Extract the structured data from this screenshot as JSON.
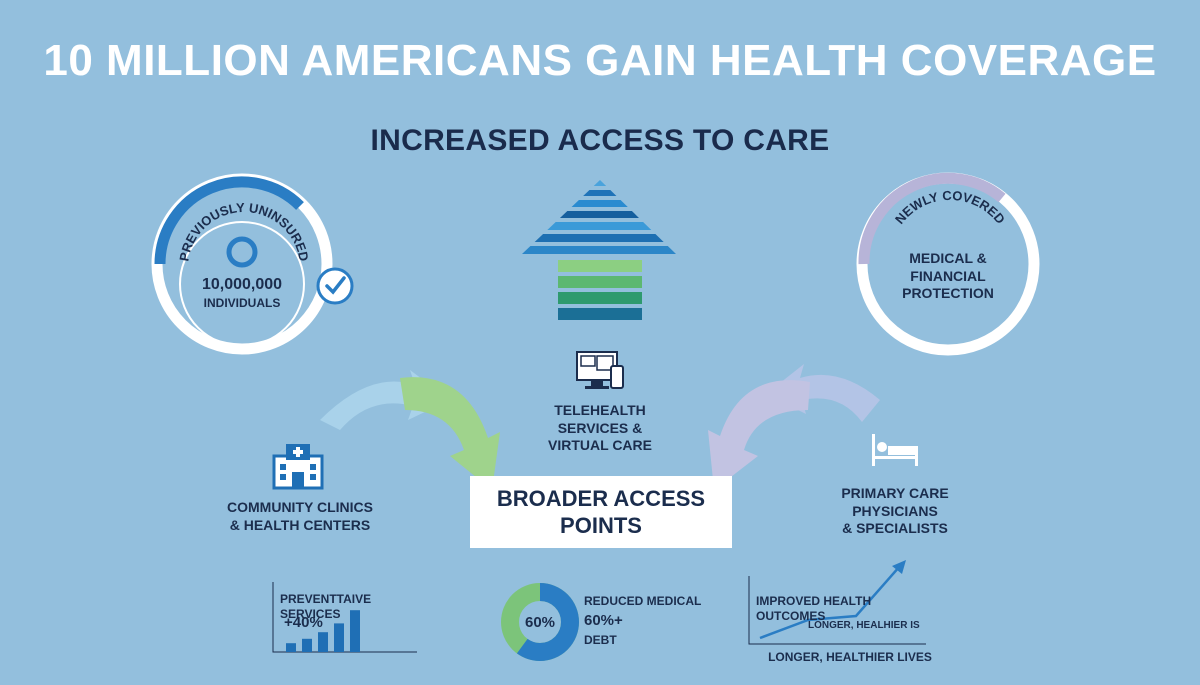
{
  "header": {
    "title": "10 MILLION AMERICANS GAIN HEALTH COVERAGE",
    "subtitle": "INCREASED ACCESS TO CARE"
  },
  "left_circle": {
    "arc_label": "PREVIOUSLY UNINSURED",
    "count": "10,000,000",
    "unit": "INDIVIDUALS"
  },
  "right_circle": {
    "arc_label": "NEWLY COVERED",
    "text": "MEDICAL &\nFINANCIAL\nPROTECTION"
  },
  "telehealth": {
    "label": "TELEHEALTH\nSERVICES &\nVIRTUAL CARE"
  },
  "clinics": {
    "label": "COMMUNITY CLINICS\n& HEALTH CENTERS"
  },
  "primary_care": {
    "label": "PRIMARY CARE\nPHYSICIANS\n& SPECIALISTS"
  },
  "broader": {
    "label": "BROADER ACCESS\nPOINTS"
  },
  "preventive": {
    "title": "PREVENTTAIVE SERVICES",
    "value": "+40%",
    "bars": [
      0.2,
      0.3,
      0.45,
      0.65,
      0.95
    ]
  },
  "debt": {
    "center": "60%",
    "title": "REDUCED MEDICAL",
    "value": "60%+",
    "suffix": "DEBT",
    "share": 0.6
  },
  "outcomes": {
    "title": "IMPROVED HEALTH OUTCOMES",
    "inner": "LONGER, HEALHIER IS",
    "caption": "LONGER, HEALTHIER LIVES"
  },
  "colors": {
    "background": "#93bfdd",
    "navy": "#1b2d4d",
    "blue": "#2a7dc4",
    "green": "#7cc47a",
    "lavender": "#b7b4d8"
  }
}
